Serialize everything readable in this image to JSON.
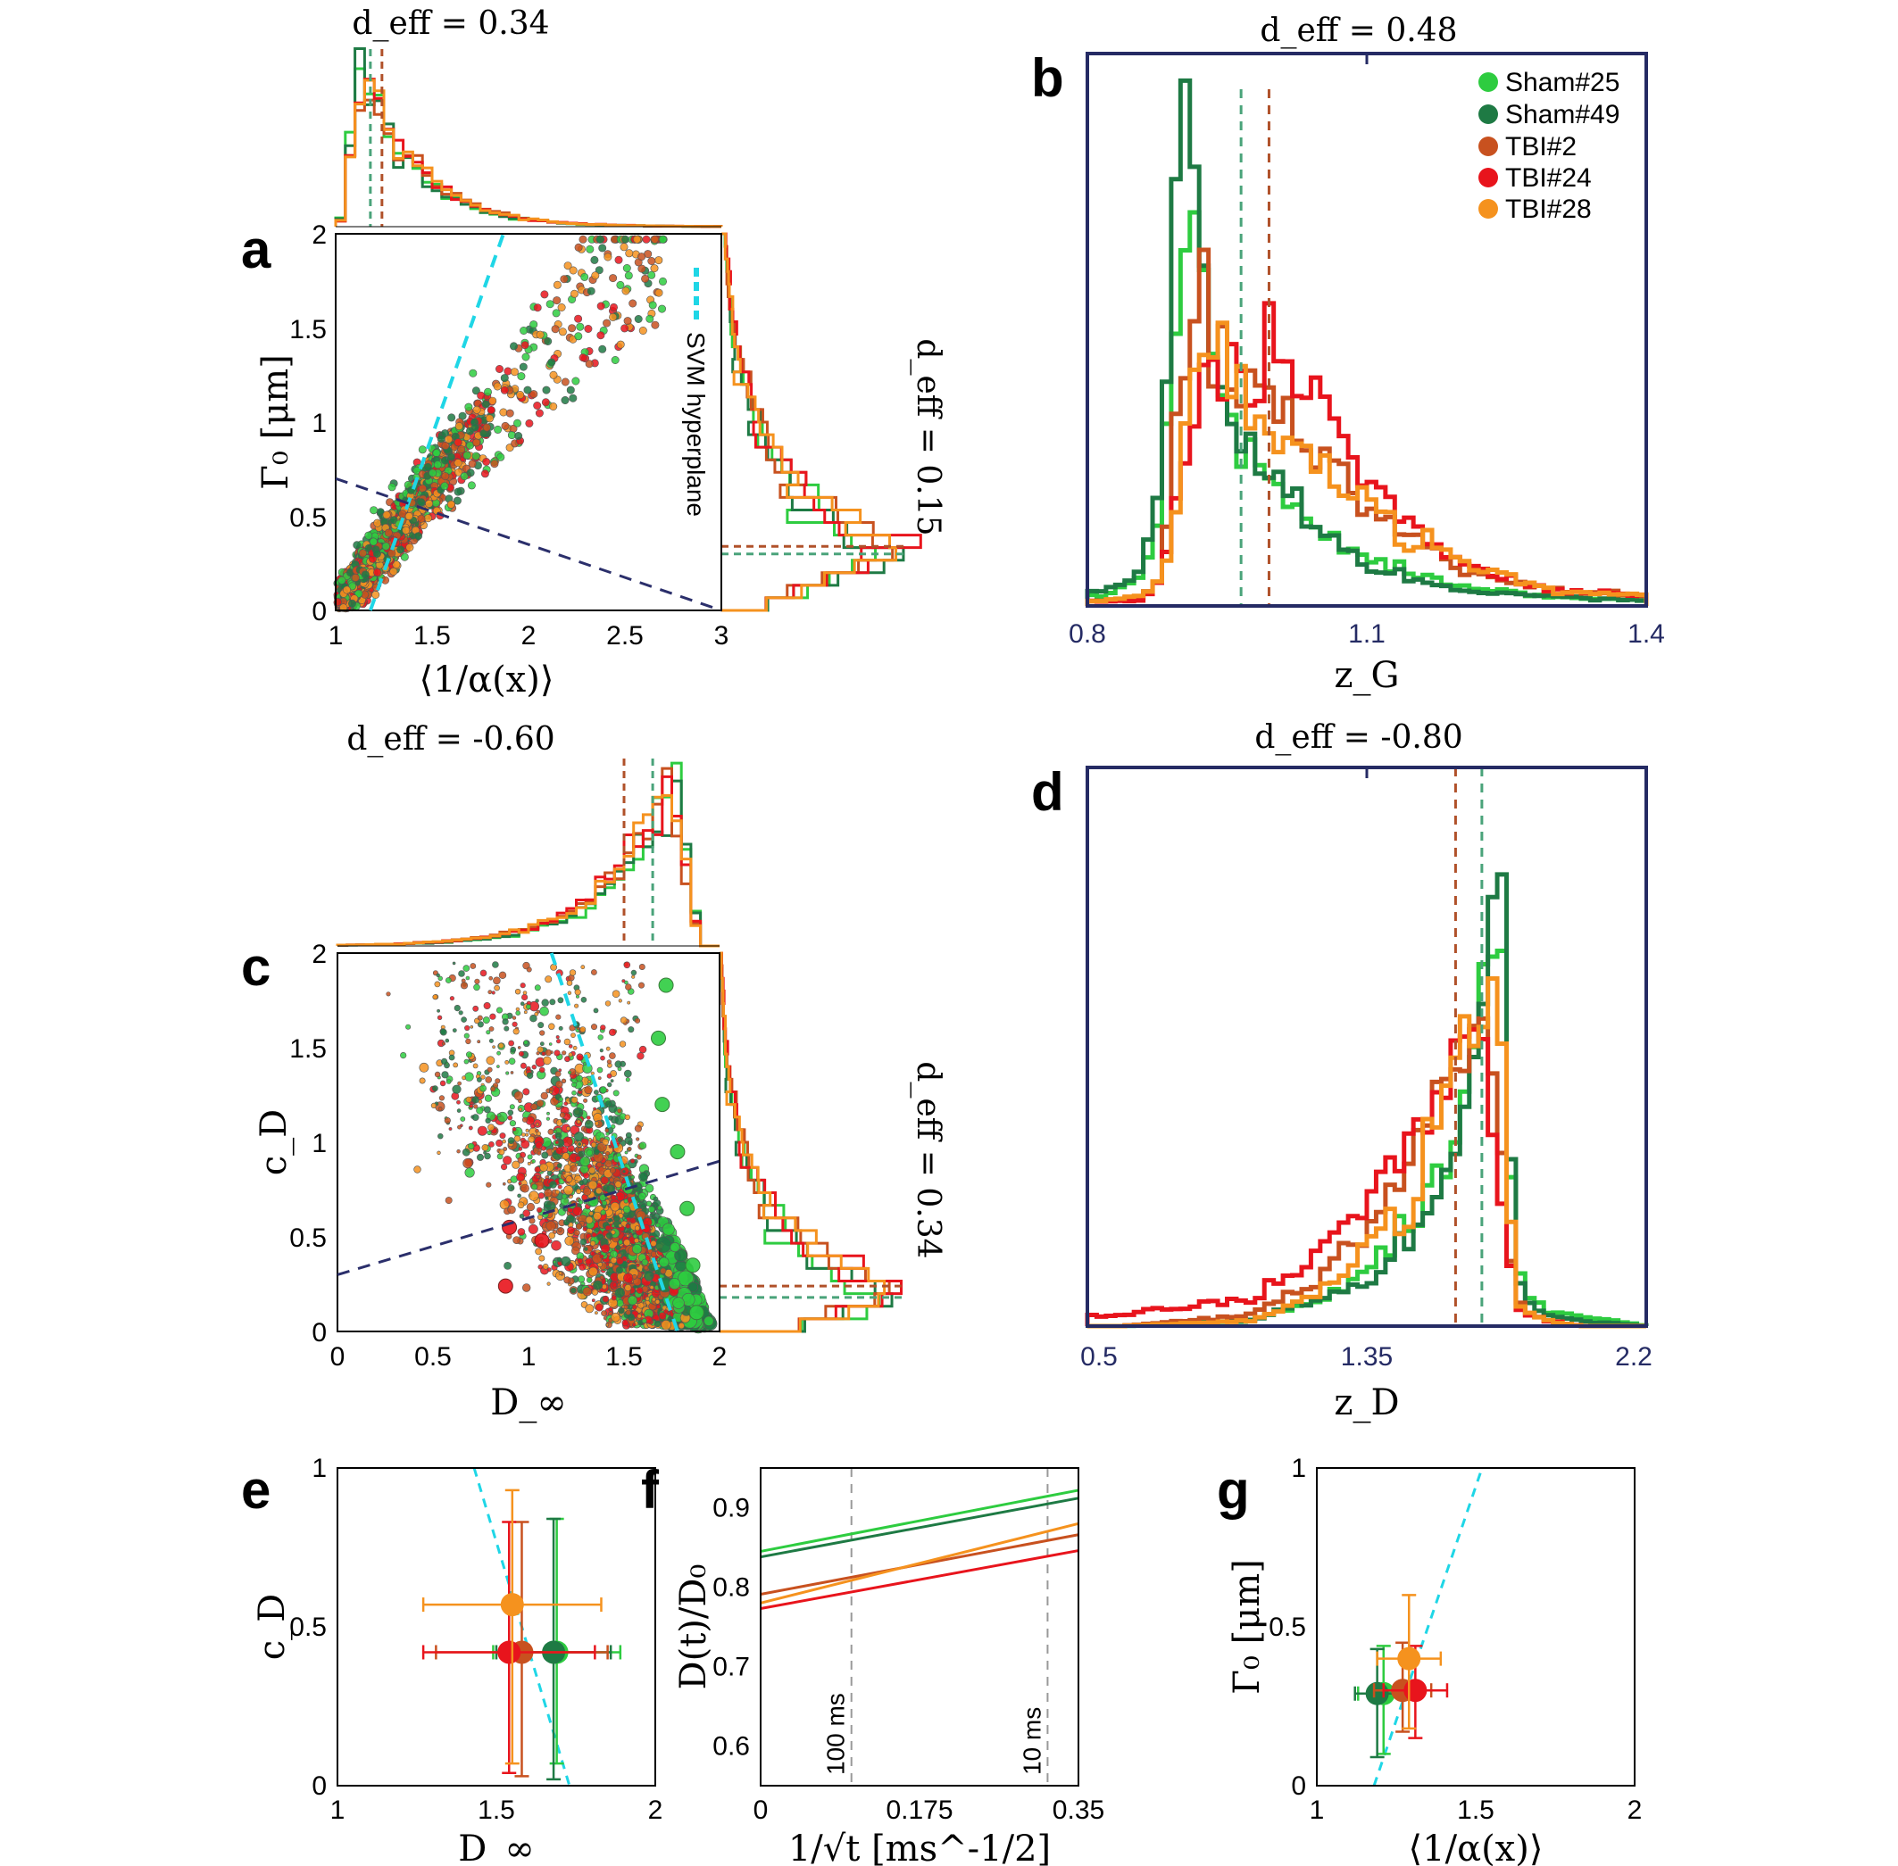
{
  "colors": {
    "Sham#25": "#2ecc40",
    "Sham#49": "#1e7a44",
    "TBI#2": "#c8511f",
    "TBI#24": "#e8141c",
    "TBI#28": "#f5921e",
    "svm": "#1fd6e6",
    "frame_navy": "#252b64",
    "dash_navy": "#2b2f6b",
    "grey": "#999999"
  },
  "legend": [
    "Sham#25",
    "Sham#49",
    "TBI#2",
    "TBI#24",
    "TBI#28"
  ],
  "panels": {
    "a": {
      "letter": "a",
      "deff_top": "d_eff = 0.34",
      "deff_right": "d_eff = 0.15",
      "xlabel": "⟨1/α(x)⟩",
      "ylabel": "Γ₀ [μm]",
      "xticks": [
        "1",
        "1.5",
        "2",
        "2.5",
        "3"
      ],
      "yticks": [
        "0",
        "0.5",
        "1",
        "1.5",
        "2"
      ],
      "svm_label": "SVM hyperplane"
    },
    "b": {
      "letter": "b",
      "deff": "d_eff = 0.48",
      "xlabel": "z_G",
      "xticks": [
        "0.8",
        "1.1",
        "1.4"
      ]
    },
    "c": {
      "letter": "c",
      "deff_top": "d_eff = -0.60",
      "deff_right": "d_eff = 0.34",
      "xlabel": "D_∞",
      "ylabel": "c_D",
      "xticks": [
        "0",
        "0.5",
        "1",
        "1.5",
        "2"
      ],
      "yticks": [
        "0",
        "0.5",
        "1",
        "1.5",
        "2"
      ]
    },
    "d": {
      "letter": "d",
      "deff": "d_eff = -0.80",
      "xlabel": "z_D",
      "xticks": [
        "0.5",
        "1.35",
        "2.2"
      ]
    },
    "e": {
      "letter": "e",
      "xlabel": "D_∞",
      "ylabel": "c_D",
      "xticks": [
        "1",
        "1.5",
        "2"
      ],
      "yticks": [
        "0",
        "0.5",
        "1"
      ]
    },
    "f": {
      "letter": "f",
      "xlabel": "1/√t [ms^-1/2]",
      "ylabel": "D(t)/D₀",
      "xticks": [
        "0",
        "0.175",
        "0.35"
      ],
      "yticks": [
        "0.6",
        "0.7",
        "0.8",
        "0.9"
      ],
      "marker_100": "100 ms",
      "marker_10": "10 ms"
    },
    "g": {
      "letter": "g",
      "xlabel": "⟨1/α(x)⟩",
      "ylabel": "Γ₀ [μm]",
      "xticks": [
        "1",
        "1.5",
        "2"
      ],
      "yticks": [
        "0",
        "0.5",
        "1"
      ]
    }
  },
  "chart_data": [
    {
      "id": "a",
      "type": "scatter",
      "title": "d_eff = 0.34 (x marginal); d_eff = 0.15 (y marginal)",
      "xlabel": "⟨1/α(x)⟩",
      "ylabel": "Γ₀ [μm]",
      "xlim": [
        1,
        3
      ],
      "ylim": [
        0,
        2
      ],
      "svm_hyperplane_dashed": [
        [
          1.18,
          0
        ],
        [
          1.87,
          2
        ]
      ],
      "decision_line_dashed": [
        [
          1,
          0.7
        ],
        [
          3,
          0
        ]
      ],
      "x_marginal_medians": {
        "Sham": 1.18,
        "TBI": 1.24
      },
      "y_marginal_medians": {
        "Sham": 0.3,
        "TBI": 0.34
      }
    },
    {
      "id": "b",
      "type": "histogram",
      "title": "d_eff = 0.48",
      "xlabel": "z_G",
      "xlim": [
        0.8,
        1.4
      ],
      "series": [
        {
          "name": "Sham#25",
          "x": [
            0.82,
            0.86,
            0.88,
            0.9,
            0.92,
            0.94,
            0.96,
            0.98,
            1.0,
            1.04,
            1.1,
            1.2,
            1.3,
            1.4
          ],
          "values": [
            0.02,
            0.06,
            0.2,
            0.75,
            0.68,
            0.45,
            0.33,
            0.27,
            0.24,
            0.18,
            0.09,
            0.04,
            0.02,
            0.01
          ]
        },
        {
          "name": "Sham#49",
          "x": [
            0.82,
            0.86,
            0.88,
            0.9,
            0.92,
            0.94,
            0.96,
            0.98,
            1.0,
            1.04,
            1.1,
            1.2,
            1.3,
            1.4
          ],
          "values": [
            0.03,
            0.08,
            0.25,
            1.0,
            0.8,
            0.42,
            0.34,
            0.28,
            0.24,
            0.17,
            0.08,
            0.03,
            0.02,
            0.01
          ]
        },
        {
          "name": "TBI#2",
          "x": [
            0.82,
            0.86,
            0.88,
            0.9,
            0.92,
            0.94,
            0.96,
            0.98,
            1.0,
            1.04,
            1.1,
            1.2,
            1.3,
            1.4
          ],
          "values": [
            0.01,
            0.02,
            0.06,
            0.45,
            0.64,
            0.52,
            0.42,
            0.4,
            0.37,
            0.31,
            0.2,
            0.07,
            0.03,
            0.02
          ]
        },
        {
          "name": "TBI#24",
          "x": [
            0.82,
            0.86,
            0.88,
            0.9,
            0.92,
            0.94,
            0.96,
            0.98,
            1.0,
            1.04,
            1.1,
            1.2,
            1.3,
            1.4
          ],
          "values": [
            0.01,
            0.01,
            0.05,
            0.28,
            0.4,
            0.45,
            0.48,
            0.45,
            0.5,
            0.4,
            0.24,
            0.08,
            0.03,
            0.02
          ]
        },
        {
          "name": "TBI#28",
          "x": [
            0.82,
            0.86,
            0.88,
            0.9,
            0.92,
            0.94,
            0.96,
            0.98,
            1.0,
            1.04,
            1.1,
            1.2,
            1.3,
            1.4
          ],
          "values": [
            0.01,
            0.02,
            0.05,
            0.25,
            0.56,
            0.55,
            0.43,
            0.38,
            0.35,
            0.3,
            0.2,
            0.08,
            0.03,
            0.02
          ]
        }
      ],
      "medians": {
        "Sham": 0.965,
        "TBI": 0.995
      }
    },
    {
      "id": "c",
      "type": "scatter",
      "title": "d_eff = -0.60 (x marginal); d_eff = 0.34 (y marginal)",
      "xlabel": "D_∞",
      "ylabel": "c_D",
      "xlim": [
        0,
        2
      ],
      "ylim": [
        0,
        2
      ],
      "svm_hyperplane_dashed": [
        [
          1.12,
          2
        ],
        [
          1.78,
          0
        ]
      ],
      "decision_line_dashed": [
        [
          0,
          0.3
        ],
        [
          2,
          0.9
        ]
      ],
      "x_marginal_medians": {
        "Sham": 1.65,
        "TBI": 1.5
      },
      "y_marginal_medians": {
        "Sham": 0.18,
        "TBI": 0.24
      }
    },
    {
      "id": "d",
      "type": "histogram",
      "title": "d_eff = -0.80",
      "xlabel": "z_D",
      "xlim": [
        0.5,
        2.2
      ],
      "series": [
        {
          "name": "Sham#25",
          "x": [
            0.6,
            1.0,
            1.2,
            1.35,
            1.5,
            1.6,
            1.65,
            1.7,
            1.75,
            1.8,
            1.85,
            1.9,
            2.0,
            2.2
          ],
          "values": [
            0.0,
            0.01,
            0.05,
            0.1,
            0.2,
            0.32,
            0.42,
            0.7,
            0.8,
            0.12,
            0.06,
            0.03,
            0.02,
            0.0
          ]
        },
        {
          "name": "Sham#49",
          "x": [
            0.6,
            1.0,
            1.2,
            1.35,
            1.5,
            1.6,
            1.65,
            1.7,
            1.75,
            1.8,
            1.85,
            1.9,
            2.0,
            2.2
          ],
          "values": [
            0.0,
            0.01,
            0.05,
            0.08,
            0.18,
            0.28,
            0.4,
            0.6,
            1.0,
            0.1,
            0.04,
            0.02,
            0.01,
            0.0
          ]
        },
        {
          "name": "TBI#2",
          "x": [
            0.6,
            1.0,
            1.2,
            1.35,
            1.5,
            1.6,
            1.65,
            1.7,
            1.75,
            1.8,
            1.85,
            1.9,
            2.0,
            2.2
          ],
          "values": [
            0.0,
            0.02,
            0.08,
            0.18,
            0.32,
            0.45,
            0.52,
            0.55,
            0.4,
            0.05,
            0.02,
            0.01,
            0.0,
            0.0
          ]
        },
        {
          "name": "TBI#24",
          "x": [
            0.6,
            1.0,
            1.2,
            1.35,
            1.5,
            1.6,
            1.65,
            1.7,
            1.75,
            1.8,
            1.85,
            1.9,
            2.0,
            2.2
          ],
          "values": [
            0.02,
            0.05,
            0.12,
            0.22,
            0.36,
            0.46,
            0.5,
            0.5,
            0.3,
            0.04,
            0.02,
            0.01,
            0.0,
            0.0
          ]
        },
        {
          "name": "TBI#28",
          "x": [
            0.6,
            1.0,
            1.2,
            1.35,
            1.5,
            1.6,
            1.65,
            1.7,
            1.75,
            1.8,
            1.85,
            1.9,
            2.0,
            2.2
          ],
          "values": [
            0.0,
            0.01,
            0.06,
            0.14,
            0.26,
            0.4,
            0.5,
            0.55,
            0.56,
            0.05,
            0.02,
            0.01,
            0.0,
            0.0
          ]
        }
      ],
      "medians": {
        "Sham": 1.7,
        "TBI": 1.62
      }
    },
    {
      "id": "e",
      "type": "scatter",
      "xlabel": "D_∞",
      "ylabel": "c_D",
      "xlim": [
        1,
        2
      ],
      "ylim": [
        0,
        1
      ],
      "points": [
        {
          "name": "Sham#25",
          "x": 1.69,
          "y": 0.42,
          "xerr": 0.2,
          "yerr": [
            0.35,
            0.42
          ]
        },
        {
          "name": "Sham#49",
          "x": 1.68,
          "y": 0.42,
          "xerr": 0.18,
          "yerr": [
            0.4,
            0.42
          ]
        },
        {
          "name": "TBI#2",
          "x": 1.58,
          "y": 0.42,
          "xerr": 0.27,
          "yerr": [
            0.39,
            0.41
          ]
        },
        {
          "name": "TBI#24",
          "x": 1.54,
          "y": 0.42,
          "xerr": 0.27,
          "yerr": [
            0.38,
            0.41
          ]
        },
        {
          "name": "TBI#28",
          "x": 1.55,
          "y": 0.57,
          "xerr": 0.28,
          "yerr": [
            0.5,
            0.36
          ]
        }
      ],
      "svm_hyperplane_dashed": [
        [
          1.43,
          1
        ],
        [
          1.73,
          0
        ]
      ]
    },
    {
      "id": "f",
      "type": "line",
      "xlabel": "1/√t [ms^-1/2]",
      "ylabel": "D(t)/D₀",
      "xlim": [
        0,
        0.35
      ],
      "ylim": [
        0.55,
        0.95
      ],
      "series": [
        {
          "name": "Sham#25",
          "x": [
            0,
            0.35
          ],
          "values": [
            0.845,
            0.922
          ]
        },
        {
          "name": "Sham#49",
          "x": [
            0,
            0.35
          ],
          "values": [
            0.838,
            0.912
          ]
        },
        {
          "name": "TBI#2",
          "x": [
            0,
            0.35
          ],
          "values": [
            0.791,
            0.866
          ]
        },
        {
          "name": "TBI#24",
          "x": [
            0,
            0.35
          ],
          "values": [
            0.773,
            0.846
          ]
        },
        {
          "name": "TBI#28",
          "x": [
            0,
            0.35
          ],
          "values": [
            0.78,
            0.88
          ]
        }
      ],
      "markers": [
        {
          "label": "100 ms",
          "x": 0.1
        },
        {
          "label": "10 ms",
          "x": 0.316
        }
      ]
    },
    {
      "id": "g",
      "type": "scatter",
      "xlabel": "⟨1/α(x)⟩",
      "ylabel": "Γ₀ [μm]",
      "xlim": [
        1,
        2
      ],
      "ylim": [
        0,
        1
      ],
      "points": [
        {
          "name": "Sham#25",
          "x": 1.21,
          "y": 0.29,
          "xerr": 0.08,
          "yerr": [
            0.19,
            0.15
          ]
        },
        {
          "name": "Sham#49",
          "x": 1.19,
          "y": 0.29,
          "xerr": 0.07,
          "yerr": [
            0.2,
            0.14
          ]
        },
        {
          "name": "TBI#2",
          "x": 1.27,
          "y": 0.3,
          "xerr": 0.09,
          "yerr": [
            0.13,
            0.15
          ]
        },
        {
          "name": "TBI#24",
          "x": 1.31,
          "y": 0.3,
          "xerr": 0.1,
          "yerr": [
            0.15,
            0.14
          ]
        },
        {
          "name": "TBI#28",
          "x": 1.29,
          "y": 0.4,
          "xerr": 0.1,
          "yerr": [
            0.22,
            0.2
          ]
        }
      ],
      "svm_hyperplane_dashed": [
        [
          1.18,
          0
        ],
        [
          1.52,
          1
        ]
      ]
    }
  ]
}
